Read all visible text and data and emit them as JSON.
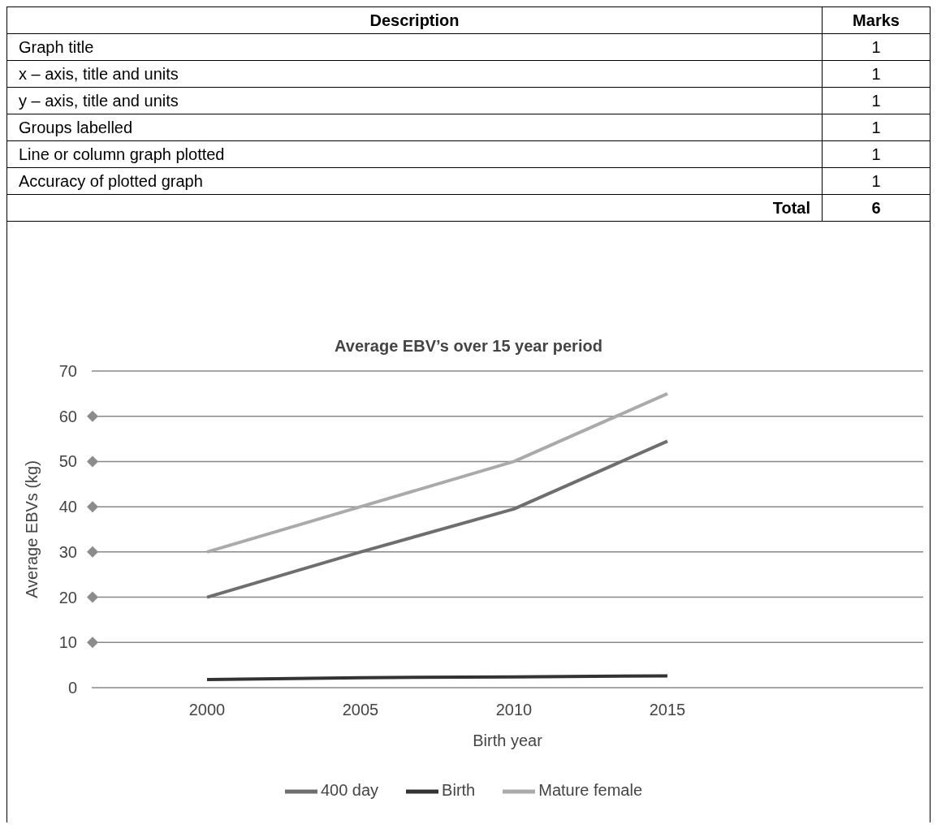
{
  "chart_data": {
    "type": "line",
    "title": "Average EBV’s over 15 year period",
    "xlabel": "Birth year",
    "ylabel": "Average EBVs (kg)",
    "categories": [
      "2000",
      "2005",
      "2010",
      "2015"
    ],
    "series": [
      {
        "name": "Birth",
        "color": "#333333",
        "values": [
          1.8,
          2.2,
          2.4,
          2.6
        ]
      },
      {
        "name": "400 day",
        "color": "#6e6e6e",
        "values": [
          20,
          30,
          39.5,
          54.5
        ]
      },
      {
        "name": "Mature female",
        "color": "#aaaaaa",
        "values": [
          30,
          40,
          50,
          65
        ]
      }
    ],
    "ylim": [
      0,
      70
    ],
    "yticks": [
      0,
      10,
      20,
      30,
      40,
      50,
      60,
      70
    ],
    "grid": "y",
    "legend": "bottom",
    "marker": "none",
    "line_style": "solid",
    "annotations": [
      "Description",
      "Marks",
      "Graph title",
      "1",
      "x – axis, title and units",
      "1",
      "y – axis, title and units",
      "1",
      "Groups labelled",
      "1",
      "Line or column graph plotted",
      "1",
      "Accuracy of plotted graph",
      "1",
      "Total",
      "6"
    ]
  }
}
